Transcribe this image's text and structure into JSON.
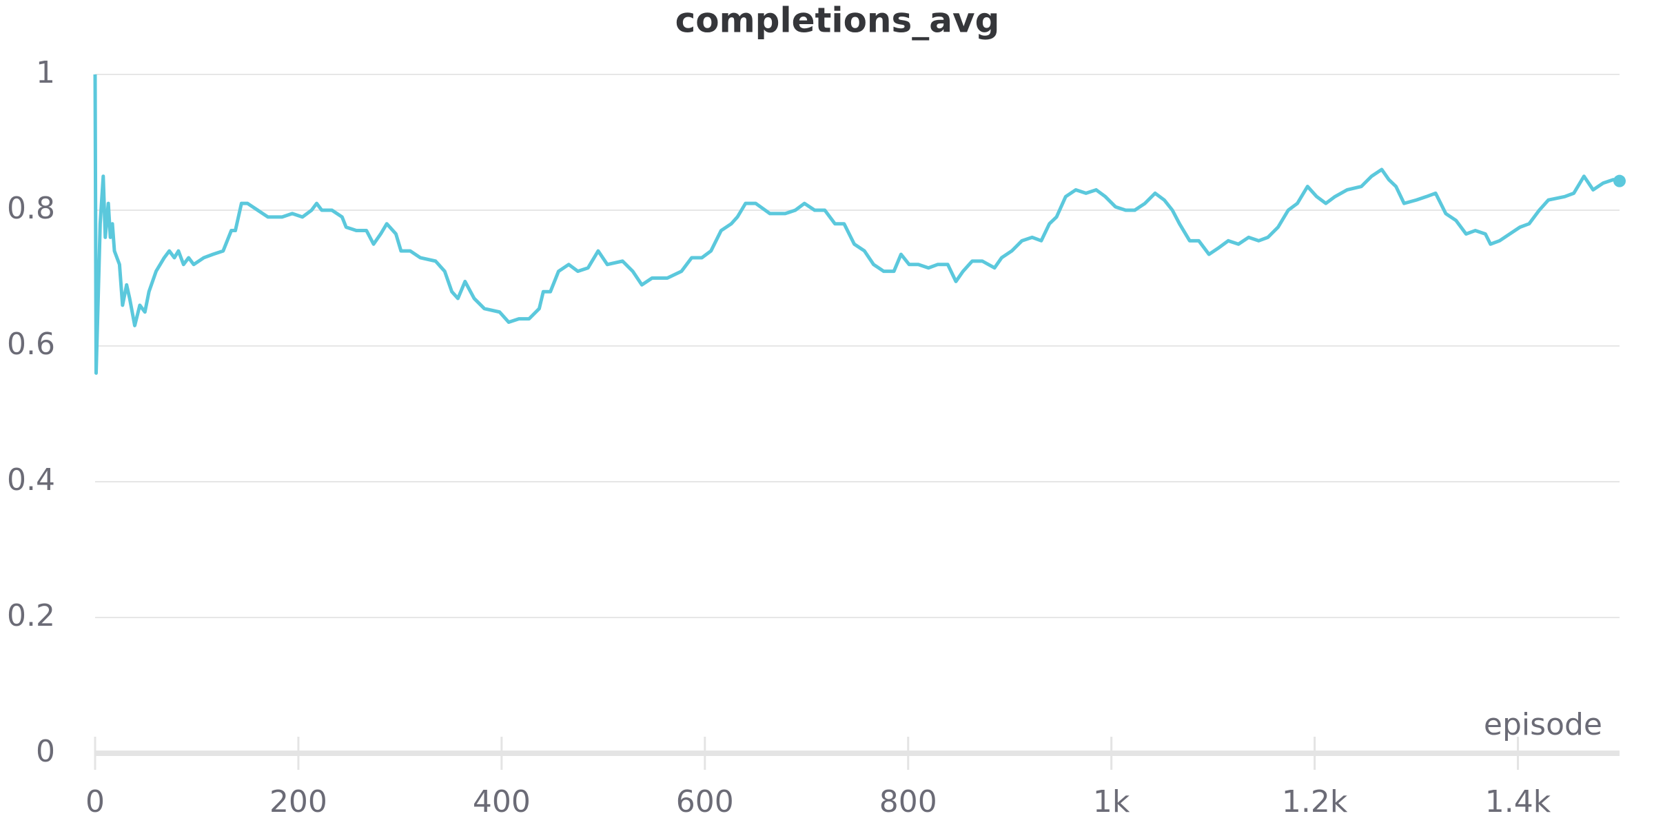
{
  "chart_data": {
    "type": "line",
    "title": "completions_avg",
    "xlabel": "episode",
    "xlim": [
      0,
      1500
    ],
    "ylim": [
      0,
      1
    ],
    "xticks": [
      0,
      200,
      400,
      600,
      800,
      {
        "value": 1000,
        "label": "1k"
      },
      {
        "value": 1200,
        "label": "1.2k"
      },
      {
        "value": 1400,
        "label": "1.4k"
      }
    ],
    "yticks": [
      0,
      0.2,
      0.4,
      0.6,
      0.8,
      1
    ],
    "grid": true,
    "x": [
      0,
      1,
      5,
      8,
      10,
      13,
      15,
      17,
      19,
      24,
      27,
      31,
      34,
      39,
      44,
      49,
      53,
      60,
      68,
      73,
      78,
      82,
      87,
      92,
      97,
      107,
      116,
      126,
      134,
      138,
      144,
      150,
      160,
      170,
      184,
      194,
      204,
      213,
      218,
      223,
      233,
      243,
      247,
      257,
      267,
      274,
      281,
      287,
      296,
      301,
      310,
      320,
      335,
      344,
      351,
      357,
      364,
      373,
      383,
      398,
      407,
      417,
      427,
      437,
      441,
      448,
      456,
      466,
      475,
      485,
      495,
      504,
      519,
      529,
      538,
      548,
      563,
      577,
      587,
      597,
      606,
      616,
      626,
      632,
      640,
      650,
      664,
      679,
      689,
      698,
      708,
      718,
      728,
      737,
      747,
      757,
      766,
      776,
      786,
      793,
      801,
      810,
      820,
      829,
      839,
      847,
      854,
      863,
      873,
      885,
      892,
      902,
      912,
      922,
      931,
      939,
      946,
      955,
      965,
      975,
      985,
      994,
      1004,
      1014,
      1023,
      1033,
      1043,
      1052,
      1060,
      1067,
      1077,
      1086,
      1096,
      1106,
      1115,
      1125,
      1135,
      1145,
      1154,
      1164,
      1174,
      1183,
      1193,
      1202,
      1211,
      1220,
      1232,
      1246,
      1256,
      1266,
      1273,
      1280,
      1288,
      1300,
      1310,
      1319,
      1329,
      1339,
      1349,
      1358,
      1368,
      1373,
      1382,
      1392,
      1402,
      1411,
      1421,
      1430,
      1446,
      1455,
      1465,
      1474,
      1484,
      1494,
      1500
    ],
    "series": [
      {
        "color": "#5bc8dc",
        "values": [
          1.0,
          0.56,
          0.78,
          0.85,
          0.76,
          0.81,
          0.76,
          0.78,
          0.74,
          0.72,
          0.66,
          0.69,
          0.67,
          0.63,
          0.66,
          0.65,
          0.68,
          0.71,
          0.73,
          0.74,
          0.73,
          0.74,
          0.72,
          0.73,
          0.72,
          0.73,
          0.735,
          0.74,
          0.77,
          0.77,
          0.81,
          0.81,
          0.8,
          0.79,
          0.79,
          0.795,
          0.79,
          0.8,
          0.81,
          0.8,
          0.8,
          0.79,
          0.775,
          0.77,
          0.77,
          0.75,
          0.765,
          0.78,
          0.765,
          0.74,
          0.74,
          0.73,
          0.725,
          0.71,
          0.68,
          0.67,
          0.695,
          0.67,
          0.655,
          0.65,
          0.635,
          0.64,
          0.64,
          0.655,
          0.68,
          0.68,
          0.71,
          0.72,
          0.71,
          0.715,
          0.74,
          0.72,
          0.725,
          0.71,
          0.69,
          0.7,
          0.7,
          0.71,
          0.73,
          0.73,
          0.74,
          0.77,
          0.78,
          0.79,
          0.81,
          0.81,
          0.795,
          0.795,
          0.8,
          0.81,
          0.8,
          0.8,
          0.78,
          0.78,
          0.75,
          0.74,
          0.72,
          0.71,
          0.71,
          0.735,
          0.72,
          0.72,
          0.715,
          0.72,
          0.72,
          0.695,
          0.71,
          0.725,
          0.725,
          0.715,
          0.73,
          0.74,
          0.755,
          0.76,
          0.755,
          0.78,
          0.79,
          0.82,
          0.83,
          0.825,
          0.83,
          0.82,
          0.805,
          0.8,
          0.8,
          0.81,
          0.825,
          0.815,
          0.8,
          0.78,
          0.755,
          0.755,
          0.735,
          0.745,
          0.755,
          0.75,
          0.76,
          0.755,
          0.76,
          0.775,
          0.8,
          0.81,
          0.835,
          0.82,
          0.81,
          0.82,
          0.83,
          0.835,
          0.85,
          0.86,
          0.845,
          0.835,
          0.81,
          0.815,
          0.82,
          0.825,
          0.795,
          0.785,
          0.765,
          0.77,
          0.765,
          0.75,
          0.755,
          0.765,
          0.775,
          0.78,
          0.8,
          0.815,
          0.82,
          0.825,
          0.85,
          0.83,
          0.84,
          0.845,
          0.843
        ]
      }
    ]
  }
}
